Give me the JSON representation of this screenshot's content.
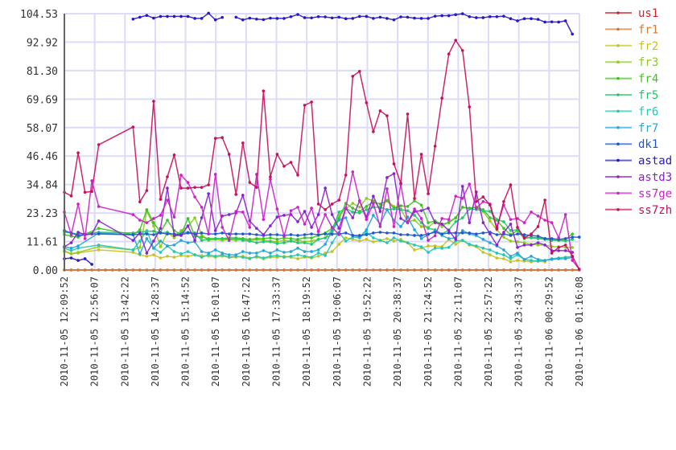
{
  "chart_data": {
    "type": "line",
    "title": "",
    "xlabel": "",
    "ylabel": "",
    "ylim": [
      0,
      104.53
    ],
    "grid": true,
    "legend_position": "right",
    "sample_interval_minutes": 10.48,
    "sample_count": 76,
    "x_range_minutes": [
      0,
      786.27
    ],
    "y_tick_labels": [
      "0.00",
      "11.61",
      "23.23",
      "34.84",
      "46.46",
      "58.07",
      "69.69",
      "81.30",
      "92.92",
      "104.53"
    ],
    "y_tick_values": [
      0,
      11.61,
      23.23,
      34.84,
      46.46,
      58.07,
      69.69,
      81.3,
      92.92,
      104.53
    ],
    "x_tick_labels": [
      "2010-11-05 12:09:52",
      "2010-11-05 12:56:07",
      "2010-11-05 13:42:22",
      "2010-11-05 14:28:37",
      "2010-11-05 15:14:52",
      "2010-11-05 16:01:07",
      "2010-11-05 16:47:22",
      "2010-11-05 17:33:37",
      "2010-11-05 18:19:52",
      "2010-11-05 19:06:07",
      "2010-11-05 19:52:22",
      "2010-11-05 20:38:37",
      "2010-11-05 21:24:52",
      "2010-11-05 22:11:07",
      "2010-11-05 22:57:22",
      "2010-11-05 23:43:37",
      "2010-11-06 00:29:52",
      "2010-11-06 01:16:08"
    ],
    "x_tick_minutes": [
      0,
      46.25,
      92.5,
      138.75,
      185,
      231.25,
      277.5,
      323.75,
      370,
      416.25,
      462.5,
      508.75,
      555,
      601.25,
      647.5,
      693.75,
      740,
      786.27
    ],
    "series": [
      {
        "name": "us1",
        "color": "#d0202c",
        "values": [
          0,
          0,
          0,
          0,
          0,
          0,
          0,
          0,
          0,
          0,
          0,
          0,
          0,
          0,
          0,
          0,
          0,
          0,
          0,
          0,
          0,
          0,
          0,
          0,
          0,
          0,
          0,
          0,
          0,
          0,
          0,
          0,
          0,
          0,
          0,
          0,
          0,
          0,
          0,
          0,
          0,
          0,
          0,
          0,
          0,
          0,
          0,
          0,
          0,
          0,
          0,
          0,
          0,
          0,
          0,
          0,
          0,
          0,
          0,
          0,
          0,
          0,
          0,
          0,
          0,
          0,
          0,
          0,
          0,
          0,
          0,
          0,
          0,
          0,
          0,
          0
        ]
      },
      {
        "name": "fr1",
        "color": "#d27a35",
        "values": [
          0,
          0,
          0,
          0,
          0,
          0,
          0,
          0,
          0,
          0,
          0,
          0,
          0,
          0,
          0,
          0,
          0,
          0,
          0,
          0,
          0,
          0,
          0,
          0,
          0,
          0,
          0,
          0,
          0,
          0,
          0,
          0,
          0,
          0,
          0,
          0,
          0,
          0,
          0,
          0,
          0,
          0,
          0,
          0,
          0,
          0,
          0,
          0,
          0,
          0,
          0,
          0,
          0,
          0,
          0,
          0,
          0,
          0,
          0,
          0,
          0,
          0,
          0,
          0,
          0,
          0,
          0,
          0,
          0,
          0,
          0,
          0,
          0,
          0,
          0,
          0
        ]
      },
      {
        "name": "fr2",
        "color": "#c9c21c",
        "values": [
          7.5,
          6.6,
          6.9,
          null,
          null,
          8.2,
          null,
          null,
          null,
          null,
          7.2,
          6.2,
          5.6,
          6.2,
          4.9,
          5.6,
          5.2,
          5.9,
          5.6,
          6.2,
          5.9,
          5.6,
          5.2,
          5.6,
          5.2,
          5.2,
          5.6,
          4.9,
          5.2,
          4.6,
          5.2,
          5.2,
          5.6,
          5.2,
          4.6,
          5.2,
          4.9,
          5.6,
          6.9,
          7.5,
          10.5,
          13.1,
          12.5,
          11.8,
          12.5,
          11.5,
          12.1,
          12.8,
          11.8,
          12.5,
          11.1,
          8.2,
          8.9,
          9.8,
          9.8,
          9.5,
          12.5,
          10.5,
          12.1,
          10.2,
          9.5,
          7.2,
          6.2,
          4.9,
          4.6,
          3.3,
          3.9,
          3.6,
          3.3,
          3.6,
          3.3,
          null,
          null,
          null,
          null,
          null
        ]
      },
      {
        "name": "fr3",
        "color": "#8fcb1c",
        "values": [
          7.9,
          6.6,
          7.2,
          null,
          null,
          9.5,
          null,
          null,
          null,
          null,
          8.2,
          9.2,
          24,
          18,
          9.5,
          15.4,
          13.1,
          16.1,
          17.7,
          21.3,
          14.4,
          12.1,
          12.5,
          12.1,
          12.5,
          12.1,
          12.8,
          11.8,
          12.5,
          12.1,
          11.8,
          11.5,
          12.1,
          11.8,
          12.1,
          11.5,
          11.8,
          12.5,
          13.1,
          14.4,
          22.3,
          24.9,
          27.2,
          25.6,
          29.2,
          28.2,
          25.2,
          28.5,
          25.9,
          24.9,
          19.7,
          20.3,
          17.7,
          17.4,
          19.7,
          17.7,
          19.7,
          21.3,
          25.6,
          25.2,
          25.6,
          23.9,
          20,
          16.4,
          13.4,
          11.8,
          11.5,
          11.1,
          10.5,
          10.2,
          10.2,
          9.5,
          9.5,
          9.2,
          9.2,
          null
        ]
      },
      {
        "name": "fr4",
        "color": "#3cc41e",
        "values": [
          14.4,
          13.8,
          13.4,
          null,
          null,
          17,
          null,
          null,
          null,
          null,
          14.4,
          16.4,
          24.6,
          19.3,
          15.4,
          20.3,
          16.1,
          14.4,
          21,
          13.8,
          13.4,
          12.8,
          12.8,
          12.8,
          13.1,
          13.1,
          12.8,
          12.5,
          12.8,
          12.8,
          13.1,
          12.5,
          13.1,
          12.8,
          12.5,
          13.1,
          13.1,
          14.1,
          15.1,
          17,
          21,
          27.2,
          25.2,
          23.9,
          25.9,
          27.9,
          26.9,
          28.2,
          25.2,
          26.2,
          25.9,
          28.2,
          26.5,
          19.3,
          20,
          18.7,
          19.3,
          21.3,
          25.6,
          25.2,
          25.6,
          24.6,
          21.3,
          20.3,
          17,
          14.4,
          16.1,
          12.8,
          13.4,
          13.1,
          12.8,
          12.5,
          12.1,
          12.5,
          14.7,
          null
        ]
      },
      {
        "name": "fr5",
        "color": "#1fc86a",
        "values": [
          15.4,
          15.1,
          14.7,
          null,
          null,
          15.4,
          null,
          null,
          null,
          null,
          15.1,
          15.4,
          15.8,
          15.8,
          15.1,
          15.4,
          14.4,
          15.1,
          15.4,
          15.1,
          12.1,
          12.5,
          12.8,
          12.8,
          12.5,
          12.8,
          12.1,
          11.8,
          11.1,
          11.5,
          11.5,
          10.8,
          11.1,
          11.8,
          11.1,
          11.1,
          10.5,
          12.5,
          13.1,
          16.4,
          23.6,
          25.2,
          23.6,
          23.3,
          24.6,
          25.6,
          25.6,
          24.6,
          24.9,
          24.6,
          24.2,
          22.3,
          19.3,
          17,
          16.4,
          14.7,
          16.4,
          19.7,
          21.3,
          24.9,
          24.6,
          24.2,
          23.9,
          20.6,
          19.7,
          16.1,
          16.4,
          13.4,
          13.1,
          12.8,
          12.5,
          12.1,
          12.1,
          11.8,
          12.5,
          null
        ]
      },
      {
        "name": "fr6",
        "color": "#22c8b0",
        "values": [
          8.9,
          7.9,
          8.9,
          null,
          null,
          10.2,
          null,
          null,
          null,
          null,
          8.2,
          11.8,
          16.1,
          8.9,
          7.2,
          9.8,
          7.5,
          6.6,
          7.5,
          6.2,
          5.2,
          6.2,
          5.6,
          6.2,
          5.2,
          5.6,
          5.2,
          4.6,
          5.6,
          4.9,
          5.6,
          5.9,
          5.2,
          5.6,
          6.2,
          5.6,
          5.2,
          6.9,
          5.9,
          11.1,
          15.4,
          11.8,
          13.4,
          13.1,
          15.4,
          13.1,
          12.1,
          11.1,
          13.1,
          11.8,
          11.1,
          10.2,
          9.5,
          7.2,
          8.9,
          8.9,
          9.2,
          11.8,
          12.1,
          10.5,
          9.8,
          8.9,
          8.2,
          6.9,
          6.2,
          4.6,
          6.2,
          4.3,
          3.9,
          3.6,
          3.9,
          4.6,
          4.9,
          5.2,
          5.6,
          null
        ]
      },
      {
        "name": "fr7",
        "color": "#24a6d6",
        "values": [
          9.5,
          8.9,
          9.8,
          null,
          null,
          15.1,
          null,
          null,
          null,
          null,
          14.4,
          6.6,
          12.8,
          8.9,
          11.8,
          9.8,
          10.2,
          12.1,
          11.1,
          11.5,
          7.5,
          6.9,
          8.2,
          6.9,
          6.2,
          6.2,
          7.5,
          6.9,
          6.9,
          7.9,
          6.9,
          8.2,
          7.2,
          7.5,
          8.9,
          7.5,
          7.5,
          8.2,
          10.5,
          16.1,
          20.3,
          21.3,
          14.1,
          13.4,
          16.4,
          22.3,
          18.7,
          24.6,
          20.3,
          17.7,
          21.6,
          16.4,
          12.8,
          14.4,
          16.1,
          14.1,
          12.8,
          13.1,
          16.1,
          14.7,
          14.1,
          12.5,
          11.1,
          9.8,
          8.2,
          5.6,
          6.9,
          4.3,
          5.6,
          4.3,
          3.9,
          4.3,
          4.6,
          4.6,
          5.2,
          null
        ]
      },
      {
        "name": "dk1",
        "color": "#2156d0",
        "values": [
          16.1,
          15.1,
          14.1,
          14.4,
          14.7,
          14.7,
          null,
          null,
          null,
          null,
          14.4,
          14.7,
          14.7,
          14.4,
          15.1,
          14.7,
          14.7,
          14.4,
          15.1,
          14.7,
          15.1,
          14.7,
          14.7,
          15.1,
          14.7,
          14.7,
          14.7,
          14.7,
          14.4,
          14.1,
          14.4,
          14.4,
          14.1,
          14.4,
          14.1,
          14.4,
          14.7,
          14.4,
          14.7,
          14.7,
          14.7,
          15.1,
          14.1,
          14.1,
          14.4,
          15.1,
          15.4,
          15.1,
          15.1,
          14.4,
          14.4,
          14.1,
          14.1,
          14.7,
          15.4,
          14.7,
          15.1,
          15.1,
          15.1,
          15.1,
          14.7,
          15.1,
          15.4,
          14.4,
          14.7,
          14.1,
          14.7,
          14.4,
          14.1,
          13.8,
          12.8,
          12.8,
          12.5,
          12.8,
          13.4,
          13.4
        ]
      },
      {
        "name": "astad",
        "color": "#2618c8",
        "line_breaks_before": [
          10,
          25
        ],
        "values": [
          4.6,
          4.9,
          3.9,
          4.6,
          2.3,
          null,
          null,
          null,
          null,
          null,
          102.3,
          103.1,
          103.8,
          102.7,
          103.4,
          103.4,
          103.4,
          103.4,
          103.4,
          102.6,
          102.6,
          104.7,
          102,
          103,
          null,
          103.1,
          102,
          102.7,
          102.3,
          102.1,
          102.7,
          102.6,
          102.6,
          103.3,
          104.2,
          102.9,
          102.8,
          103.3,
          103.2,
          102.8,
          103.1,
          102.5,
          102.6,
          103.4,
          103.4,
          102.6,
          103.1,
          102.6,
          102,
          103.2,
          103.1,
          102.7,
          102.6,
          102.6,
          103.5,
          103.7,
          103.7,
          104.1,
          104.5,
          103.3,
          102.9,
          102.9,
          103.3,
          103.3,
          103.5,
          102.5,
          101.6,
          102.5,
          102.5,
          102.2,
          101.1,
          101.2,
          101.1,
          101.6,
          96.2,
          null
        ]
      },
      {
        "name": "astd3",
        "color": "#8a20d0",
        "values": [
          9.5,
          11.1,
          15.4,
          14.4,
          14.7,
          20,
          null,
          null,
          null,
          null,
          12.1,
          15.1,
          6.9,
          11.8,
          17,
          33.4,
          14.1,
          14.1,
          18,
          12.1,
          21.3,
          31.1,
          16.1,
          22,
          22.6,
          23.3,
          30.5,
          20,
          17,
          14.4,
          18,
          21.6,
          22.3,
          22.6,
          19.7,
          23.9,
          17.4,
          22.6,
          33.4,
          22.6,
          17,
          25.2,
          21.3,
          28.2,
          21.6,
          30.1,
          23.9,
          37.7,
          39.3,
          21,
          19.3,
          23.9,
          24.2,
          25.2,
          19.3,
          18.7,
          16.1,
          12.5,
          34.1,
          19.3,
          31.8,
          19.3,
          14.7,
          10.2,
          15.4,
          18.7,
          9.2,
          10.2,
          10.2,
          11.1,
          10.2,
          7.9,
          7.9,
          7.9,
          7.2,
          null
        ]
      },
      {
        "name": "ss7ge",
        "color": "#cc20c8",
        "values": [
          23.6,
          14.4,
          26.9,
          12.8,
          36.4,
          25.9,
          null,
          null,
          null,
          null,
          22.6,
          20.3,
          19.3,
          21,
          22.3,
          28.5,
          21.6,
          38.7,
          35.7,
          29.8,
          25.6,
          14.7,
          39,
          17.4,
          12.1,
          23.9,
          23.6,
          17.4,
          39,
          20.6,
          37,
          24.9,
          13.8,
          24.2,
          25.6,
          18.7,
          25.2,
          15.7,
          22.6,
          17.4,
          14.4,
          25.2,
          40,
          28.2,
          20.6,
          27.2,
          17.7,
          33.1,
          17.7,
          35,
          19.3,
          24.9,
          21,
          12.1,
          14,
          21,
          20.6,
          30.1,
          29.2,
          35,
          25.2,
          27.9,
          26.9,
          17.4,
          26.5,
          20.6,
          21,
          19.3,
          23.6,
          22,
          20.3,
          19.3,
          13.1,
          22.6,
          3.9,
          0.3
        ]
      },
      {
        "name": "ss7zh",
        "color": "#c8105a",
        "values": [
          31.7,
          30.2,
          47.8,
          31.7,
          32,
          51.1,
          null,
          null,
          null,
          null,
          58.3,
          27.8,
          32.4,
          68.8,
          28.8,
          38,
          46.9,
          33.4,
          33.4,
          33.7,
          33.7,
          34.7,
          53.7,
          54,
          47.2,
          30.8,
          51.8,
          35.7,
          33.7,
          73,
          38,
          47.2,
          42.3,
          43.9,
          38.7,
          67.2,
          68.5,
          26.9,
          24.6,
          26.9,
          28.5,
          38.7,
          79,
          81,
          68.2,
          56.4,
          64.9,
          62.9,
          43.3,
          35.4,
          63.6,
          29.2,
          47.2,
          31.1,
          50.5,
          70.1,
          88.1,
          93.7,
          89.5,
          66.5,
          27.9,
          29.8,
          26.5,
          16.7,
          27.9,
          34.7,
          17.4,
          13.1,
          14.7,
          17.7,
          28.5,
          6.9,
          9.2,
          10.2,
          5.6,
          0.3
        ]
      }
    ]
  }
}
